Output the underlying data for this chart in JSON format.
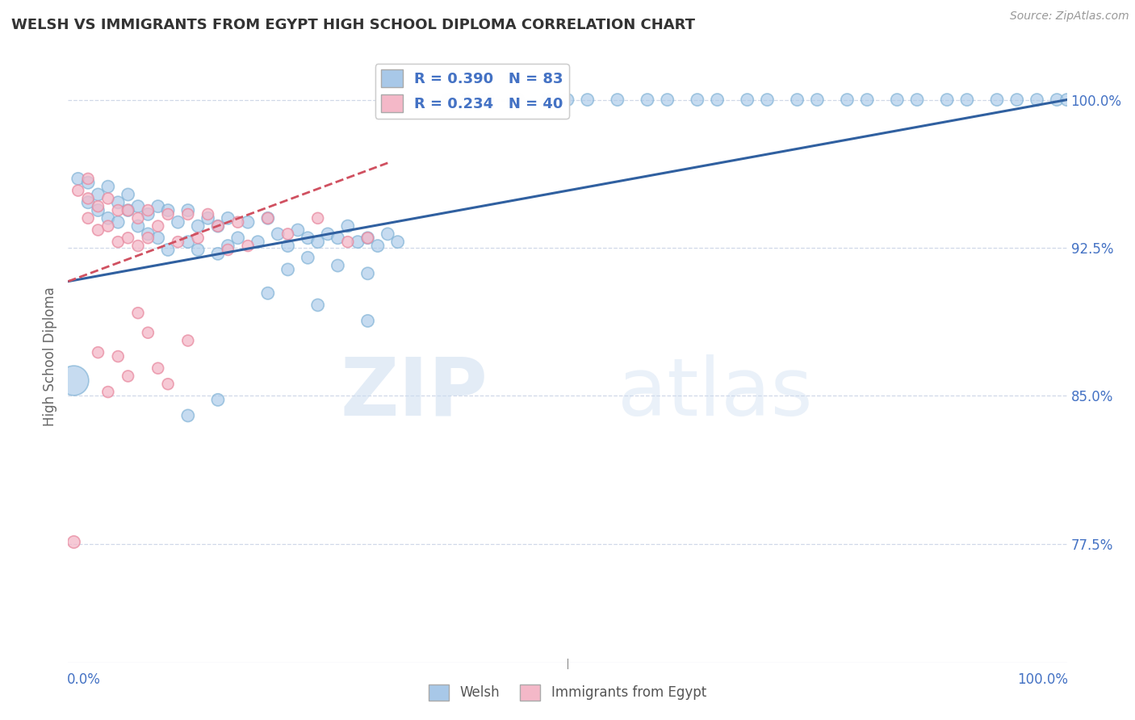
{
  "title": "WELSH VS IMMIGRANTS FROM EGYPT HIGH SCHOOL DIPLOMA CORRELATION CHART",
  "source": "Source: ZipAtlas.com",
  "ylabel": "High School Diploma",
  "ytick_vals": [
    0.775,
    0.85,
    0.925,
    1.0
  ],
  "ytick_labels": [
    "77.5%",
    "85.0%",
    "92.5%",
    "100.0%"
  ],
  "xlim": [
    0.0,
    1.0
  ],
  "ylim": [
    0.715,
    1.025
  ],
  "legend_blue_r": "R = 0.390",
  "legend_blue_n": "N = 83",
  "legend_pink_r": "R = 0.234",
  "legend_pink_n": "N = 40",
  "legend_blue_label": "Welsh",
  "legend_pink_label": "Immigrants from Egypt",
  "blue_color": "#a8c8e8",
  "blue_edge_color": "#7aafd4",
  "pink_color": "#f4b8c8",
  "pink_edge_color": "#e88aa0",
  "blue_line_color": "#3060a0",
  "pink_line_color": "#d05060",
  "watermark_zip": "ZIP",
  "watermark_atlas": "atlas",
  "grid_color": "#d0d8e8",
  "title_color": "#333333",
  "label_color": "#666666",
  "axis_label_color": "#4472c4",
  "blue_trend_x": [
    0.0,
    1.0
  ],
  "blue_trend_y": [
    0.908,
    1.0
  ],
  "pink_trend_x": [
    0.0,
    0.32
  ],
  "pink_trend_y": [
    0.908,
    0.968
  ],
  "blue_x": [
    0.01,
    0.02,
    0.02,
    0.03,
    0.03,
    0.04,
    0.04,
    0.05,
    0.05,
    0.06,
    0.06,
    0.07,
    0.07,
    0.08,
    0.08,
    0.09,
    0.09,
    0.1,
    0.1,
    0.11,
    0.12,
    0.12,
    0.13,
    0.13,
    0.14,
    0.15,
    0.15,
    0.16,
    0.16,
    0.17,
    0.18,
    0.19,
    0.2,
    0.21,
    0.22,
    0.23,
    0.24,
    0.25,
    0.26,
    0.27,
    0.28,
    0.29,
    0.3,
    0.31,
    0.32,
    0.33,
    0.22,
    0.24,
    0.27,
    0.3,
    0.35,
    0.38,
    0.4,
    0.42,
    0.45,
    0.48,
    0.5,
    0.52,
    0.55,
    0.58,
    0.6,
    0.63,
    0.65,
    0.68,
    0.7,
    0.73,
    0.75,
    0.78,
    0.8,
    0.83,
    0.85,
    0.88,
    0.9,
    0.93,
    0.95,
    0.97,
    0.99,
    1.0,
    0.2,
    0.25,
    0.3,
    0.15,
    0.12
  ],
  "blue_y": [
    0.96,
    0.958,
    0.948,
    0.952,
    0.944,
    0.956,
    0.94,
    0.948,
    0.938,
    0.952,
    0.944,
    0.946,
    0.936,
    0.942,
    0.932,
    0.946,
    0.93,
    0.944,
    0.924,
    0.938,
    0.944,
    0.928,
    0.936,
    0.924,
    0.94,
    0.936,
    0.922,
    0.94,
    0.926,
    0.93,
    0.938,
    0.928,
    0.94,
    0.932,
    0.926,
    0.934,
    0.93,
    0.928,
    0.932,
    0.93,
    0.936,
    0.928,
    0.93,
    0.926,
    0.932,
    0.928,
    0.914,
    0.92,
    0.916,
    0.912,
    1.0,
    1.0,
    1.0,
    1.0,
    1.0,
    1.0,
    1.0,
    1.0,
    1.0,
    1.0,
    1.0,
    1.0,
    1.0,
    1.0,
    1.0,
    1.0,
    1.0,
    1.0,
    1.0,
    1.0,
    1.0,
    1.0,
    1.0,
    1.0,
    1.0,
    1.0,
    1.0,
    1.0,
    0.902,
    0.896,
    0.888,
    0.848,
    0.84
  ],
  "blue_sizes": [
    120,
    120,
    120,
    120,
    120,
    120,
    120,
    120,
    120,
    120,
    120,
    120,
    120,
    120,
    120,
    120,
    120,
    120,
    120,
    120,
    120,
    120,
    120,
    120,
    120,
    120,
    120,
    120,
    120,
    120,
    120,
    120,
    120,
    120,
    120,
    120,
    120,
    120,
    120,
    120,
    120,
    120,
    120,
    120,
    120,
    120,
    120,
    120,
    120,
    120,
    120,
    120,
    120,
    120,
    120,
    120,
    120,
    120,
    120,
    120,
    120,
    120,
    120,
    120,
    120,
    120,
    120,
    120,
    120,
    120,
    120,
    120,
    120,
    120,
    120,
    120,
    120,
    120,
    120,
    120,
    120,
    120,
    120
  ],
  "special_blue_x": [
    0.005
  ],
  "special_blue_y": [
    0.858
  ],
  "special_blue_size": [
    700
  ],
  "pink_x": [
    0.01,
    0.02,
    0.02,
    0.03,
    0.03,
    0.04,
    0.04,
    0.05,
    0.05,
    0.06,
    0.06,
    0.07,
    0.07,
    0.08,
    0.08,
    0.09,
    0.1,
    0.11,
    0.12,
    0.13,
    0.14,
    0.15,
    0.16,
    0.17,
    0.18,
    0.2,
    0.22,
    0.25,
    0.28,
    0.3,
    0.07,
    0.09,
    0.1,
    0.12,
    0.03,
    0.05,
    0.08,
    0.06,
    0.04,
    0.02
  ],
  "pink_y": [
    0.954,
    0.95,
    0.94,
    0.946,
    0.934,
    0.95,
    0.936,
    0.944,
    0.928,
    0.944,
    0.93,
    0.94,
    0.926,
    0.944,
    0.93,
    0.936,
    0.942,
    0.928,
    0.942,
    0.93,
    0.942,
    0.936,
    0.924,
    0.938,
    0.926,
    0.94,
    0.932,
    0.94,
    0.928,
    0.93,
    0.892,
    0.864,
    0.856,
    0.878,
    0.872,
    0.87,
    0.882,
    0.86,
    0.852,
    0.96
  ],
  "pink_sizes": [
    100,
    100,
    100,
    100,
    100,
    100,
    100,
    100,
    100,
    100,
    100,
    100,
    100,
    100,
    100,
    100,
    100,
    100,
    100,
    100,
    100,
    100,
    100,
    100,
    100,
    100,
    100,
    100,
    100,
    100,
    100,
    100,
    100,
    100,
    100,
    100,
    100,
    100,
    100,
    100
  ],
  "special_pink_x": [
    0.005
  ],
  "special_pink_y": [
    0.776
  ],
  "special_pink_size": [
    120
  ]
}
